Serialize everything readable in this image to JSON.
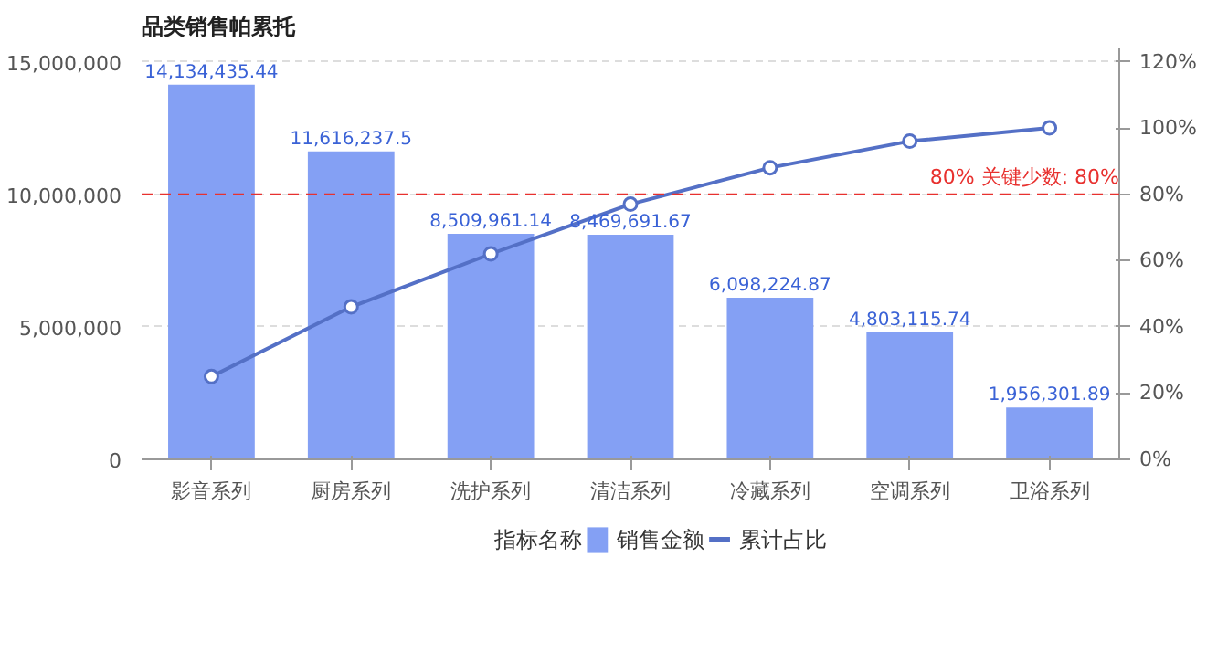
{
  "chart_data": {
    "type": "bar",
    "title": "品类销售帕累托",
    "categories": [
      "影音系列",
      "厨房系列",
      "洗护系列",
      "清洁系列",
      "冷藏系列",
      "空调系列",
      "卫浴系列"
    ],
    "series": [
      {
        "name": "销售金额",
        "color": "#84a0f4",
        "values": [
          14134435.44,
          11616237.5,
          8509961.14,
          8469691.67,
          6098224.87,
          4803115.74,
          1956301.89
        ],
        "value_labels": [
          "14,134,435.44",
          "11,616,237.5",
          "8,509,961.14",
          "8,469,691.67",
          "6,098,224.87",
          "4,803,115.74",
          "1,956,301.89"
        ]
      },
      {
        "name": "累计占比",
        "type": "line",
        "axis": "y2",
        "color": "#5470c6",
        "values": [
          25,
          46,
          62,
          77,
          88,
          96,
          100
        ]
      }
    ],
    "ylim": [
      0,
      15500000
    ],
    "yticks": [
      {
        "value": 0,
        "label": "0"
      },
      {
        "value": 5000000,
        "label": "5,000,000"
      },
      {
        "value": 10000000,
        "label": "10,000,000"
      },
      {
        "value": 15000000,
        "label": "15,000,000"
      }
    ],
    "y2lim": [
      0,
      124
    ],
    "y2ticks": [
      {
        "value": 0,
        "label": "0%"
      },
      {
        "value": 20,
        "label": "20%"
      },
      {
        "value": 40,
        "label": "40%"
      },
      {
        "value": 60,
        "label": "60%"
      },
      {
        "value": 80,
        "label": "80%"
      },
      {
        "value": 100,
        "label": "100%"
      },
      {
        "value": 120,
        "label": "120%"
      }
    ],
    "ref_lines": [
      {
        "axis": "y2",
        "value": 80,
        "label": "80% 关键少数: 80%",
        "color": "#e8312f",
        "line_style": "dashed"
      }
    ],
    "legend_title": "指标名称",
    "legend": "bottom",
    "grid": "y",
    "marker": "circle"
  }
}
